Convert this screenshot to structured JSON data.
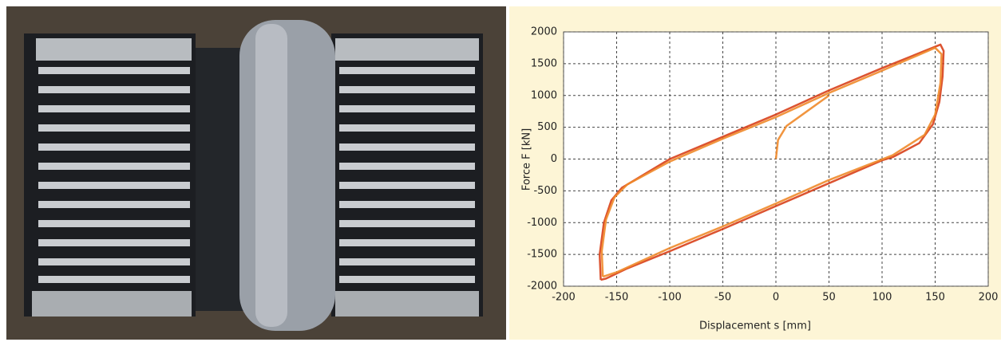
{
  "chart_data": {
    "type": "line",
    "xlabel": "Displacement s [mm]",
    "ylabel": "Force F [kN]",
    "xlim": [
      -200,
      200
    ],
    "ylim": [
      -2000,
      2000
    ],
    "xticks": [
      -200,
      -150,
      -100,
      -50,
      0,
      50,
      100,
      150,
      200
    ],
    "yticks": [
      -2000,
      -1500,
      -1000,
      -500,
      0,
      500,
      1000,
      1500,
      2000
    ],
    "grid": true,
    "series": [
      {
        "color": "#d8401a",
        "x": [
          -165,
          -166,
          -162,
          -155,
          -145,
          -120,
          -100,
          -50,
          0,
          50,
          100,
          140,
          155,
          158,
          157,
          154,
          148,
          135,
          110,
          100,
          50,
          0,
          -50,
          -100,
          -140,
          -160,
          -165
        ],
        "values": [
          -1900,
          -1500,
          -1000,
          -650,
          -450,
          -200,
          0,
          350,
          700,
          1080,
          1430,
          1700,
          1800,
          1700,
          1300,
          900,
          550,
          250,
          30,
          -20,
          -380,
          -740,
          -1100,
          -1450,
          -1720,
          -1880,
          -1900
        ]
      },
      {
        "color": "#f08a2a",
        "x": [
          -163,
          -164,
          -160,
          -152,
          -140,
          -100,
          -50,
          0,
          50,
          100,
          150,
          156,
          155,
          150,
          140,
          110,
          50,
          0,
          -50,
          -100,
          -150,
          -163
        ],
        "values": [
          -1850,
          -1450,
          -950,
          -600,
          -400,
          -40,
          320,
          660,
          1040,
          1390,
          1750,
          1650,
          1200,
          700,
          380,
          60,
          -330,
          -700,
          -1060,
          -1400,
          -1780,
          -1850
        ]
      },
      {
        "color": "#f08a2a",
        "x": [
          0,
          2,
          10,
          25,
          50
        ],
        "values": [
          0,
          300,
          520,
          700,
          1000
        ]
      }
    ]
  }
}
